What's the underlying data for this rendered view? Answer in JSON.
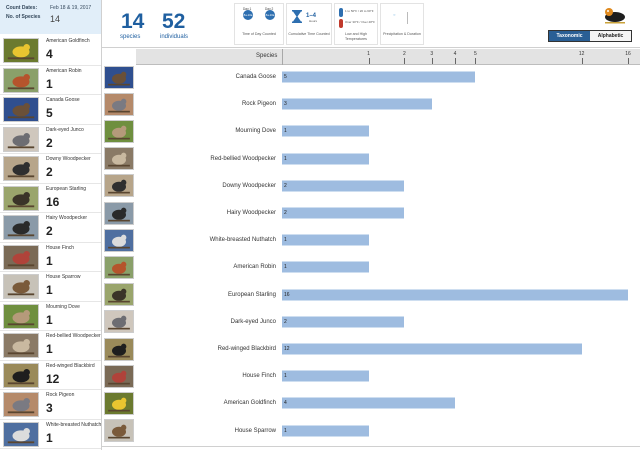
{
  "count_info": {
    "dates_label": "Count Dates:",
    "dates_value": "Feb 18 & 19, 2017",
    "species_label": "No. of Species",
    "species_value": "14"
  },
  "sidebar": {
    "items": [
      {
        "name": "American Goldfinch",
        "count": "4",
        "colors": [
          "#6b7a2f",
          "#e8c530"
        ]
      },
      {
        "name": "American Robin",
        "count": "1",
        "colors": [
          "#8aa06a",
          "#b5542c"
        ]
      },
      {
        "name": "Canada Goose",
        "count": "5",
        "colors": [
          "#2f4f8f",
          "#6a5038"
        ]
      },
      {
        "name": "Dark-eyed Junco",
        "count": "2",
        "colors": [
          "#cfc7bd",
          "#6d6d72"
        ]
      },
      {
        "name": "Downy Woodpecker",
        "count": "2",
        "colors": [
          "#b7a58a",
          "#2f2f2f"
        ]
      },
      {
        "name": "European Starling",
        "count": "16",
        "colors": [
          "#9aa56c",
          "#3a3428"
        ]
      },
      {
        "name": "Hairy Woodpecker",
        "count": "2",
        "colors": [
          "#8a9aa8",
          "#2a2a2a"
        ]
      },
      {
        "name": "House Finch",
        "count": "1",
        "colors": [
          "#7a6a56",
          "#b0433a"
        ]
      },
      {
        "name": "House Sparrow",
        "count": "1",
        "colors": [
          "#c7c2b8",
          "#7a5a3a"
        ]
      },
      {
        "name": "Mourning Dove",
        "count": "1",
        "colors": [
          "#6f8f3f",
          "#b59a7a"
        ]
      },
      {
        "name": "Red-bellied Woodpecker",
        "count": "1",
        "colors": [
          "#8a7a66",
          "#c9b9a0"
        ]
      },
      {
        "name": "Red-winged Blackbird",
        "count": "12",
        "colors": [
          "#9a8a5a",
          "#1e1e1e"
        ]
      },
      {
        "name": "Rock Pigeon",
        "count": "3",
        "colors": [
          "#b58a6a",
          "#7a7a82"
        ]
      },
      {
        "name": "White-breasted Nuthatch",
        "count": "1",
        "colors": [
          "#4f6fa0",
          "#dcdcdc"
        ]
      }
    ]
  },
  "summary": {
    "species_count": "14",
    "species_label": "species",
    "individuals_count": "52",
    "individuals_label": "individuals"
  },
  "stats": {
    "time_of_day": {
      "day1": "Day 1",
      "day2": "Day 2",
      "day1_badge": "8a-10a",
      "day2_badge": "8a-10a",
      "caption": "Time of Day Counted"
    },
    "time_counted": {
      "hours": "1–4",
      "hours_unit": "Hours",
      "caption": "Cumulative Time Counted"
    },
    "temperature": {
      "high": "1 to 50°F / 20 to 60°F",
      "low": "Over 30°F / Over 48°F",
      "caption": "Low and High Temperatures"
    },
    "precipitation": {
      "caption": "Precipitation & Duration"
    }
  },
  "sort_toggle": {
    "taxonomic_label": "Taxonomic",
    "alphabetic_label": "Alphabetic",
    "selected": "Taxonomic"
  },
  "chart_data": {
    "type": "bar",
    "orientation": "horizontal",
    "xlabel": "Species",
    "x_scale": "sqrt",
    "xlim": [
      0,
      16
    ],
    "xticks": [
      1,
      2,
      3,
      4,
      5,
      12,
      16
    ],
    "categories": [
      "Canada Goose",
      "Rock Pigeon",
      "Mourning Dove",
      "Red-bellied Woodpecker",
      "Downy Woodpecker",
      "Hairy Woodpecker",
      "White-breasted Nuthatch",
      "American Robin",
      "European Starling",
      "Dark-eyed Junco",
      "Red-winged Blackbird",
      "House Finch",
      "American Goldfinch",
      "House Sparrow"
    ],
    "values": [
      5,
      3,
      1,
      1,
      2,
      2,
      1,
      1,
      16,
      2,
      12,
      1,
      4,
      1
    ],
    "bar_color": "#9ebce0",
    "thumb_colors": [
      [
        "#2f4f8f",
        "#6a5038"
      ],
      [
        "#b58a6a",
        "#7a7a82"
      ],
      [
        "#6f8f3f",
        "#b59a7a"
      ],
      [
        "#8a7a66",
        "#c9b9a0"
      ],
      [
        "#b7a58a",
        "#2f2f2f"
      ],
      [
        "#8a9aa8",
        "#2a2a2a"
      ],
      [
        "#4f6fa0",
        "#dcdcdc"
      ],
      [
        "#8aa06a",
        "#b5542c"
      ],
      [
        "#9aa56c",
        "#3a3428"
      ],
      [
        "#cfc7bd",
        "#6d6d72"
      ],
      [
        "#9a8a5a",
        "#1e1e1e"
      ],
      [
        "#7a6a56",
        "#b0433a"
      ],
      [
        "#6b7a2f",
        "#e8c530"
      ],
      [
        "#c7c2b8",
        "#7a5a3a"
      ]
    ]
  }
}
